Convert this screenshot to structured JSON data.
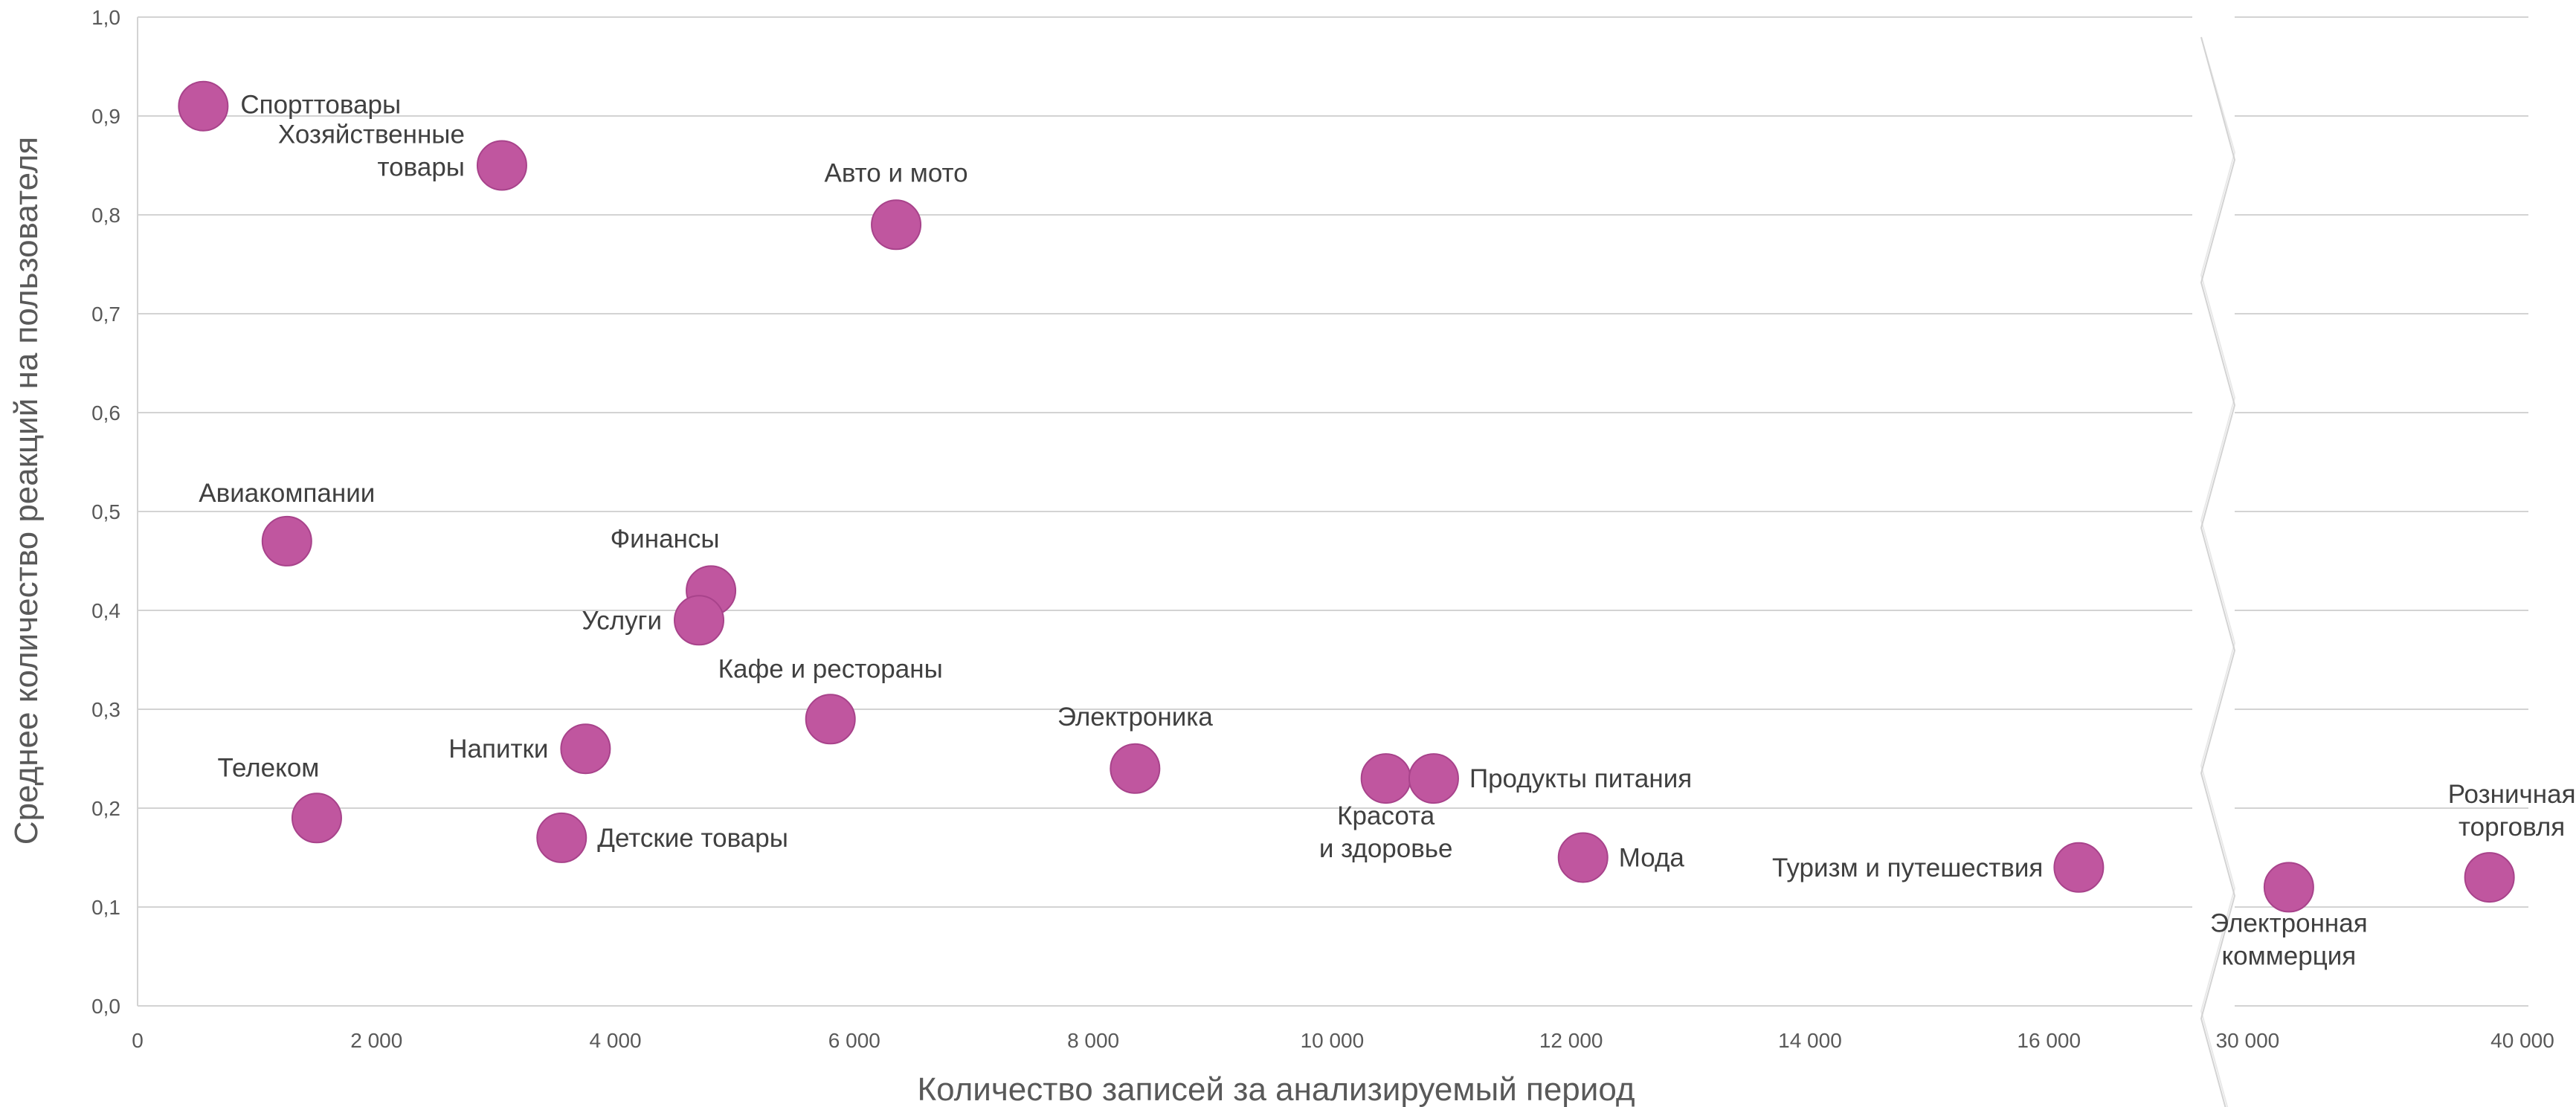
{
  "chart_data": {
    "type": "scatter",
    "xlabel": "Количество записей за анализируемый период",
    "ylabel": "Среднее количество реакций на пользователя",
    "ylim": [
      0,
      1
    ],
    "yticks": [
      "0,0",
      "0,1",
      "0,2",
      "0,3",
      "0,4",
      "0,5",
      "0,6",
      "0,7",
      "0,8",
      "0,9",
      "1,0"
    ],
    "x_segments": [
      {
        "range": [
          0,
          17200
        ],
        "ticks": [
          "0",
          "2 000",
          "4 000",
          "6 000",
          "8 000",
          "10 000",
          "12 000",
          "14 000",
          "16 000"
        ]
      },
      {
        "range": [
          28500,
          40000
        ],
        "ticks": [
          "30 000",
          "40 000"
        ]
      }
    ],
    "axis_break": true,
    "grid": true,
    "marker_color": "#c0569f",
    "points": [
      {
        "label": "Спорттовары",
        "x": 550,
        "y": 0.91
      },
      {
        "label": "Хозяйственные\nтовары",
        "x": 3050,
        "y": 0.85
      },
      {
        "label": "Авто и мото",
        "x": 6350,
        "y": 0.79
      },
      {
        "label": "Авиакомпании",
        "x": 1250,
        "y": 0.47
      },
      {
        "label": "Финансы",
        "x": 4800,
        "y": 0.42
      },
      {
        "label": "Услуги",
        "x": 4700,
        "y": 0.39
      },
      {
        "label": "Кафе и рестораны",
        "x": 5800,
        "y": 0.29
      },
      {
        "label": "Напитки",
        "x": 3750,
        "y": 0.26
      },
      {
        "label": "Электроника",
        "x": 8350,
        "y": 0.24
      },
      {
        "label": "Телеком",
        "x": 1500,
        "y": 0.19
      },
      {
        "label": "Детские товары",
        "x": 3550,
        "y": 0.17
      },
      {
        "label": "Красота\nи здоровье",
        "x": 10450,
        "y": 0.23
      },
      {
        "label": "Продукты питания",
        "x": 10850,
        "y": 0.23
      },
      {
        "label": "Мода",
        "x": 12100,
        "y": 0.15
      },
      {
        "label": "Туризм и путешествия",
        "x": 16250,
        "y": 0.14
      },
      {
        "label": "Электронная\nкоммерция",
        "x": 31500,
        "y": 0.12
      },
      {
        "label": "Розничная\nторговля",
        "x": 38800,
        "y": 0.13
      }
    ]
  }
}
